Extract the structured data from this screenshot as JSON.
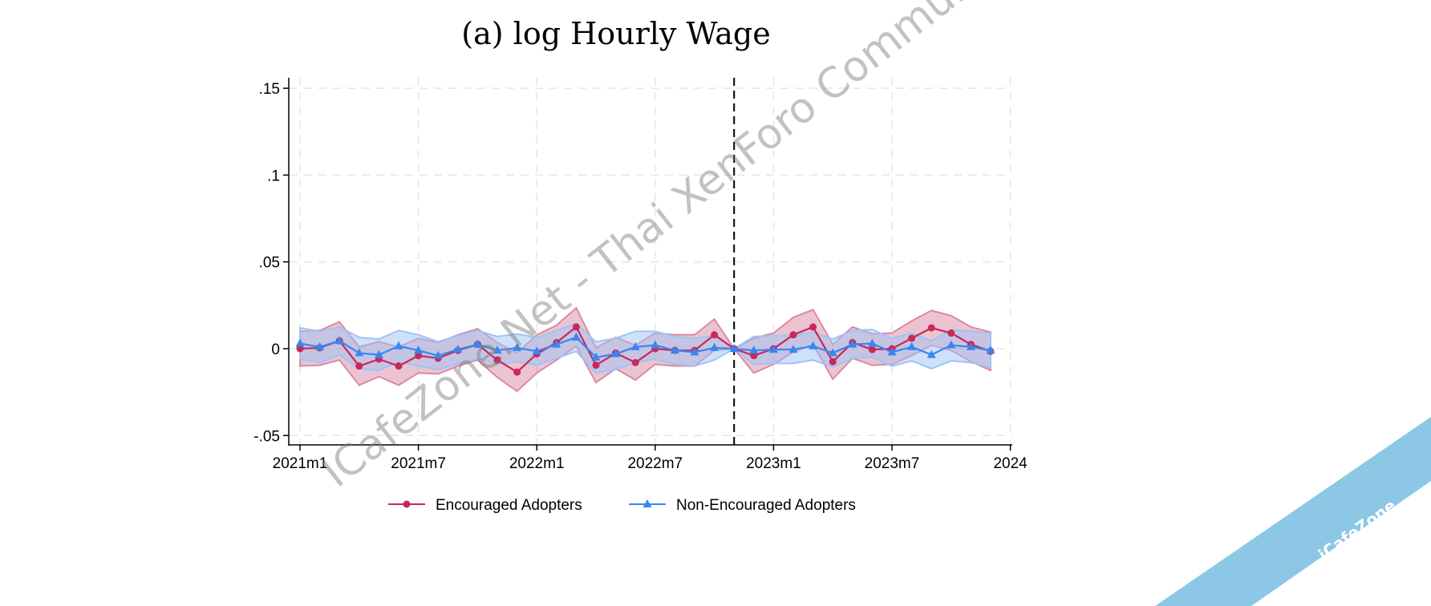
{
  "chart_data": {
    "type": "line",
    "title": "(a) log Hourly Wage",
    "xlabel": "",
    "ylabel": "",
    "x": [
      "2021m1",
      "2021m2",
      "2021m3",
      "2021m4",
      "2021m5",
      "2021m6",
      "2021m7",
      "2021m8",
      "2021m9",
      "2021m10",
      "2021m11",
      "2021m12",
      "2022m1",
      "2022m2",
      "2022m3",
      "2022m4",
      "2022m5",
      "2022m6",
      "2022m7",
      "2022m8",
      "2022m9",
      "2022m10",
      "2022m11",
      "2022m12",
      "2023m1",
      "2023m2",
      "2023m3",
      "2023m4",
      "2023m5",
      "2023m6",
      "2023m7",
      "2023m8",
      "2023m9",
      "2023m10",
      "2023m11",
      "2023m12"
    ],
    "x_tick_labels": [
      "2021m1",
      "2021m7",
      "2022m1",
      "2022m7",
      "2023m1",
      "2023m7",
      "2024"
    ],
    "y_ticks": [
      -0.05,
      0,
      0.05,
      0.1,
      0.15
    ],
    "y_tick_labels": [
      "-.05",
      "0",
      ".05",
      ".1",
      ".15"
    ],
    "ylim": [
      -0.05,
      0.15
    ],
    "grid": true,
    "reference_line": "2022m11",
    "legend_position": "bottom",
    "series": [
      {
        "name": "Encouraged Adopters",
        "color": "#c8285a",
        "band_color": "#d98aa4",
        "marker": "circle",
        "values": [
          0,
          0.0005,
          0.0045,
          -0.01,
          -0.006,
          -0.01,
          -0.004,
          -0.0055,
          -0.001,
          0.0025,
          -0.0065,
          -0.0135,
          -0.003,
          0.0035,
          0.0125,
          -0.0095,
          -0.0025,
          -0.008,
          0,
          -0.001,
          -0.001,
          0.008,
          0,
          -0.004,
          0,
          0.008,
          0.0125,
          -0.0075,
          0.0035,
          -0.0005,
          0,
          0.006,
          0.012,
          0.009,
          0.0025,
          -0.0015
        ],
        "ci_halfwidth": [
          0.01,
          0.01,
          0.011,
          0.011,
          0.01,
          0.011,
          0.01,
          0.009,
          0.009,
          0.009,
          0.01,
          0.011,
          0.011,
          0.01,
          0.011,
          0.01,
          0.009,
          0.01,
          0.009,
          0.009,
          0.009,
          0.009,
          0,
          0.01,
          0.009,
          0.01,
          0.01,
          0.01,
          0.009,
          0.009,
          0.009,
          0.01,
          0.01,
          0.01,
          0.01,
          0.011
        ]
      },
      {
        "name": "Non-Encouraged Adopters",
        "color": "#3a86f0",
        "band_color": "#9fc3f5",
        "marker": "triangle",
        "values": [
          0.003,
          0.001,
          0.0045,
          -0.0025,
          -0.0035,
          0.0015,
          -0.001,
          -0.004,
          -0.0005,
          0.0025,
          -0.001,
          0.0005,
          -0.0015,
          0.0025,
          0.0065,
          -0.005,
          -0.003,
          0.001,
          0.002,
          -0.001,
          -0.002,
          0.0005,
          0,
          -0.001,
          -0.0005,
          -0.0005,
          0.0015,
          -0.0025,
          0.0025,
          0.003,
          -0.002,
          0.001,
          -0.0035,
          0.002,
          0.001,
          -0.001
        ],
        "ci_halfwidth": [
          0.009,
          0.009,
          0.008,
          0.009,
          0.009,
          0.009,
          0.009,
          0.008,
          0.008,
          0.008,
          0.008,
          0.008,
          0.008,
          0.008,
          0.008,
          0.009,
          0.009,
          0.009,
          0.008,
          0.008,
          0.008,
          0.007,
          0,
          0.008,
          0.008,
          0.008,
          0.008,
          0.008,
          0.008,
          0.008,
          0.008,
          0.008,
          0.008,
          0.009,
          0.009,
          0.01
        ]
      }
    ]
  },
  "watermark": "ICafeZone.Net - Thai XenForo Community",
  "corner_banner": "iCafeZone"
}
